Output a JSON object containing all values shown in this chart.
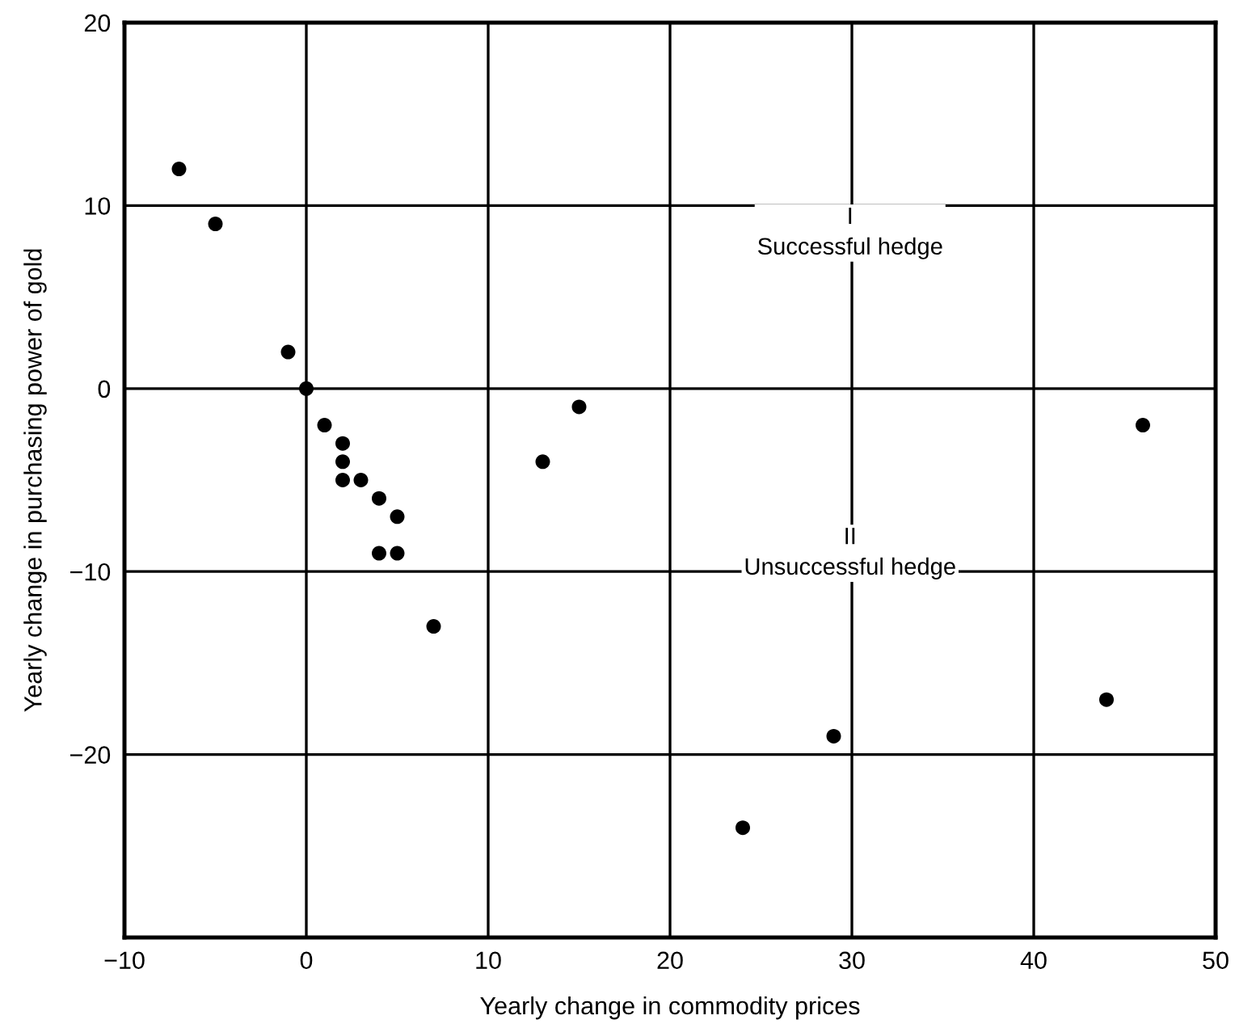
{
  "chart_data": {
    "type": "scatter",
    "xlabel": "Yearly change in commodity prices",
    "ylabel": "Yearly change in purchasing power of gold",
    "x": [
      -7,
      -5,
      -1,
      0,
      1,
      2,
      2,
      2,
      3,
      4,
      5,
      4,
      5,
      7,
      13,
      15,
      24,
      29,
      44,
      46
    ],
    "series": [
      {
        "color": "#000000",
        "values": [
          12,
          9,
          2,
          0,
          -2,
          -3,
          -4,
          -5,
          -5,
          -6,
          -7,
          -9,
          -9,
          -13,
          -4,
          -1,
          -24,
          -19,
          -17,
          -2
        ]
      }
    ],
    "marker": "circle",
    "xlim": [
      -10,
      50
    ],
    "xticks": [
      -10,
      0,
      10,
      20,
      30,
      40,
      50
    ],
    "ylim": [
      -30,
      20
    ],
    "yticks": [
      -20,
      -10,
      0,
      10,
      20
    ],
    "grid": true,
    "annotations": [
      "I\nSuccessful hedge",
      "II\nUnsuccessful hedge"
    ]
  }
}
